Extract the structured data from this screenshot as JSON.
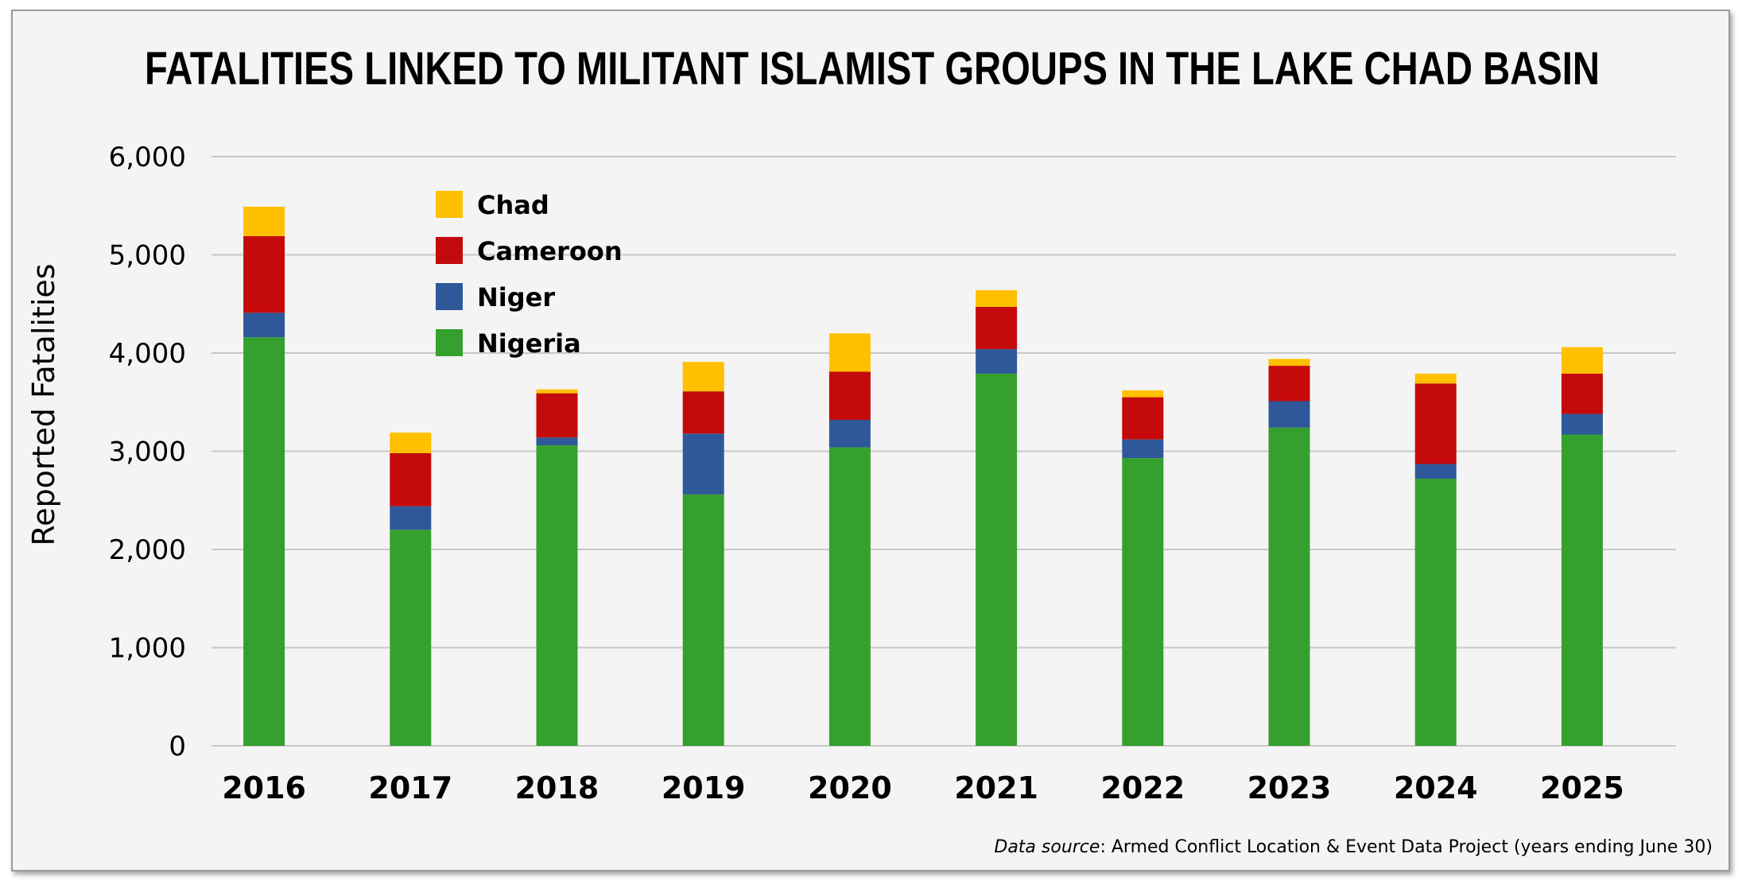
{
  "chart_data": {
    "type": "bar",
    "stacked": true,
    "title": "FATALITIES LINKED TO MILITANT ISLAMIST GROUPS IN THE LAKE CHAD BASIN",
    "ylabel": "Reported Fatalities",
    "xlabel": "",
    "ylim": [
      0,
      6000
    ],
    "yticks": [
      0,
      1000,
      2000,
      3000,
      4000,
      5000,
      6000
    ],
    "ytick_labels": [
      "0",
      "1,000",
      "2,000",
      "3,000",
      "4,000",
      "5,000",
      "6,000"
    ],
    "grid": true,
    "legend_position": "top-left",
    "categories": [
      "2016",
      "2017",
      "2018",
      "2019",
      "2020",
      "2021",
      "2022",
      "2023",
      "2024",
      "2025"
    ],
    "series": [
      {
        "name": "Nigeria",
        "color": "#35a02d",
        "values": [
          4160,
          2200,
          3060,
          2560,
          3040,
          3790,
          2930,
          3240,
          2720,
          3170
        ]
      },
      {
        "name": "Niger",
        "color": "#2e5899",
        "values": [
          250,
          240,
          80,
          620,
          280,
          250,
          190,
          270,
          150,
          210
        ]
      },
      {
        "name": "Cameroon",
        "color": "#c40a0a",
        "values": [
          780,
          540,
          450,
          430,
          490,
          430,
          430,
          360,
          820,
          410
        ]
      },
      {
        "name": "Chad",
        "color": "#ffc000",
        "values": [
          300,
          210,
          40,
          300,
          390,
          170,
          70,
          70,
          100,
          270
        ]
      }
    ],
    "legend_order": [
      "Chad",
      "Cameroon",
      "Niger",
      "Nigeria"
    ],
    "source_label": "Data source",
    "source_text": ": Armed Conflict Location & Event Data Project (years ending June 30)"
  }
}
